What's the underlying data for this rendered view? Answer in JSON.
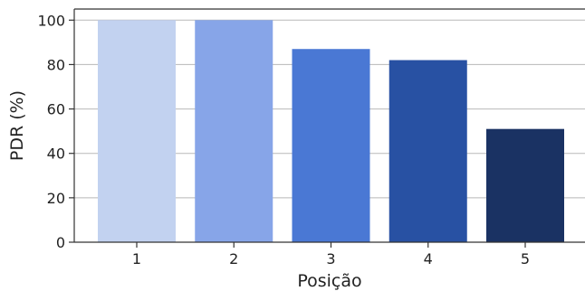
{
  "chart_data": {
    "type": "bar",
    "categories": [
      "1",
      "2",
      "3",
      "4",
      "5"
    ],
    "values": [
      100,
      100,
      87,
      82,
      51
    ],
    "bar_colors": [
      "#c2d2f0",
      "#87a5e8",
      "#4a78d4",
      "#2851a3",
      "#1a3263"
    ],
    "xlabel": "Posição",
    "ylabel": "PDR (%)",
    "ylim": [
      0,
      105
    ],
    "yticks": [
      0,
      20,
      40,
      60,
      80,
      100
    ],
    "grid": "y",
    "legend": "none"
  }
}
